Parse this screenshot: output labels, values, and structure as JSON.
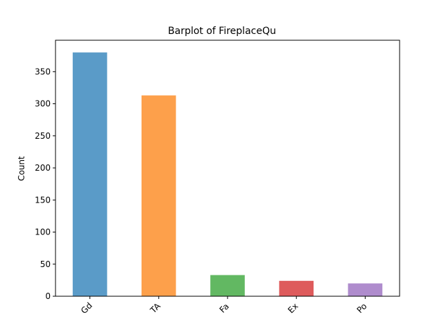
{
  "chart_data": {
    "type": "bar",
    "title": "Barplot of FireplaceQu",
    "xlabel": "",
    "ylabel": "Count",
    "categories": [
      "Gd",
      "TA",
      "Fa",
      "Ex",
      "Po"
    ],
    "values": [
      380,
      313,
      33,
      24,
      20
    ],
    "colors": [
      "#5a9bc8",
      "#fda04b",
      "#62b862",
      "#de5b5c",
      "#af8ccd"
    ],
    "ylim": [
      0,
      399
    ],
    "yticks": [
      0,
      50,
      100,
      150,
      200,
      250,
      300,
      350
    ],
    "grid": false,
    "legend": "none"
  }
}
